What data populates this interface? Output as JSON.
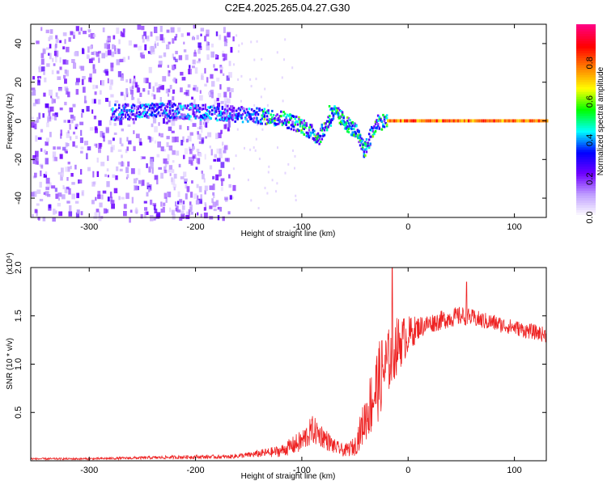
{
  "title": "C2E4.2025.265.04.27.G30",
  "chart_data": [
    {
      "type": "heatmap",
      "xlabel": "Height of straight line (km)",
      "ylabel": "Frequency (Hz)",
      "xlim": [
        -355,
        130
      ],
      "ylim": [
        -50,
        50
      ],
      "xticks": [
        -300,
        -200,
        -100,
        0,
        100
      ],
      "xtick_labels": [
        "-300",
        "-200",
        "-100",
        "0",
        "100"
      ],
      "yticks": [
        -40,
        -20,
        0,
        20,
        40
      ],
      "ytick_labels": [
        "-40",
        "-20",
        "0",
        "20",
        "40"
      ],
      "colorbar": {
        "label": "Normalized spectral amplitude",
        "range": [
          0,
          1
        ],
        "ticks": [
          0.0,
          0.2,
          0.4,
          0.6,
          0.8
        ],
        "tick_labels": [
          "0.0",
          "0.2",
          "0.4",
          "0.6",
          "0.8"
        ],
        "colors": [
          "#ffffff",
          "#c0a0ff",
          "#7000ff",
          "#0000ff",
          "#00ffff",
          "#00ff00",
          "#ffff00",
          "#ff8000",
          "#ff0000",
          "#ff0080"
        ]
      },
      "features": [
        {
          "name": "broadband noise",
          "x_range": [
            -355,
            -165
          ],
          "freq_range": [
            -50,
            50
          ],
          "amplitude": 0.15
        },
        {
          "name": "chirp trace",
          "points": [
            [
              -280,
              5
            ],
            [
              -220,
              6
            ],
            [
              -160,
              4
            ],
            [
              -120,
              2
            ],
            [
              -100,
              -2
            ],
            [
              -85,
              -8
            ],
            [
              -70,
              5
            ],
            [
              -50,
              -5
            ],
            [
              -42,
              -15
            ],
            [
              -30,
              0
            ],
            [
              0,
              1
            ],
            [
              130,
              0
            ]
          ],
          "peak_amplitude": 0.95
        },
        {
          "name": "carrier line",
          "x_range": [
            -20,
            130
          ],
          "freq": 0,
          "amplitude": 0.9
        }
      ]
    },
    {
      "type": "line",
      "xlabel": "Height of straight line (km)",
      "ylabel": "SNR (10 * v/v)",
      "scale_label": "(x10⁴)",
      "xlim": [
        -355,
        130
      ],
      "ylim": [
        0,
        2.0
      ],
      "xticks": [
        -300,
        -200,
        -100,
        0,
        100
      ],
      "xtick_labels": [
        "-300",
        "-200",
        "-100",
        "0",
        "100"
      ],
      "yticks": [
        0.5,
        1.0,
        1.5,
        2.0
      ],
      "ytick_labels": [
        "0.5",
        "1.0",
        "1.5",
        "2.0"
      ],
      "color": "#ee2222",
      "envelope_x": [
        -355,
        -300,
        -250,
        -200,
        -170,
        -150,
        -120,
        -100,
        -90,
        -80,
        -70,
        -60,
        -50,
        -40,
        -35,
        -30,
        -25,
        -20,
        -10,
        0,
        10,
        20,
        30,
        40,
        50,
        60,
        70,
        80,
        90,
        100,
        110,
        120,
        130
      ],
      "envelope_y": [
        0.02,
        0.02,
        0.03,
        0.04,
        0.04,
        0.06,
        0.1,
        0.2,
        0.32,
        0.25,
        0.15,
        0.1,
        0.15,
        0.45,
        0.6,
        0.75,
        0.9,
        1.0,
        1.2,
        1.3,
        1.38,
        1.42,
        1.45,
        1.48,
        1.5,
        1.48,
        1.45,
        1.43,
        1.4,
        1.38,
        1.35,
        1.33,
        1.3
      ],
      "noise_amp": [
        0.01,
        0.01,
        0.015,
        0.02,
        0.02,
        0.03,
        0.06,
        0.12,
        0.15,
        0.12,
        0.08,
        0.06,
        0.1,
        0.25,
        0.35,
        0.4,
        0.4,
        0.35,
        0.3,
        0.2,
        0.12,
        0.1,
        0.1,
        0.1,
        0.1,
        0.09,
        0.09,
        0.09,
        0.08,
        0.08,
        0.08,
        0.08,
        0.08
      ],
      "spikes": [
        {
          "x": -15,
          "y": 2.0
        },
        {
          "x": 55,
          "y": 1.85
        }
      ]
    }
  ]
}
